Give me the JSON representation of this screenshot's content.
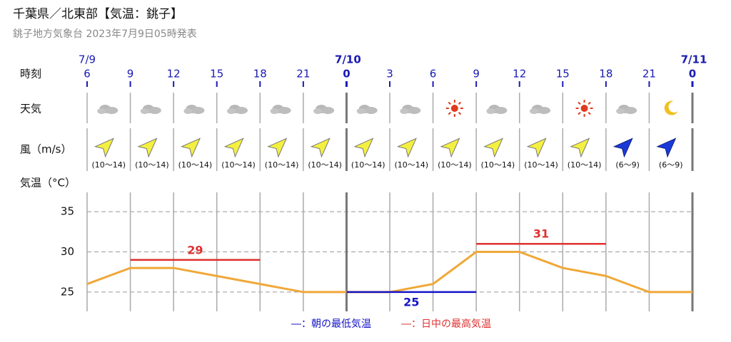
{
  "chart_data": {
    "type": "line",
    "title": "千葉県／北東部【気温：銚子】",
    "subtitle": "銚子地方気象台 2023年7月9日05時発表",
    "row_labels": {
      "time": "時刻",
      "weather": "天気",
      "wind": "風（m/s）"
    },
    "y_label": "気温（°C）",
    "dates": [
      "7/9",
      null,
      null,
      null,
      null,
      null,
      "7/10",
      null,
      null,
      null,
      null,
      null,
      null,
      null,
      "7/11"
    ],
    "categories": [
      "6",
      "9",
      "12",
      "15",
      "18",
      "21",
      "0",
      "3",
      "6",
      "9",
      "12",
      "15",
      "18",
      "21",
      "0"
    ],
    "wind_labels": [
      "(10〜14)",
      "(10〜14)",
      "(10〜14)",
      "(10〜14)",
      "(10〜14)",
      "(10〜14)",
      "(10〜14)",
      "(10〜14)",
      "(10〜14)",
      "(10〜14)",
      "(10〜14)",
      "(10〜14)",
      "(6〜9)",
      "(6〜9)"
    ],
    "ylim": [
      22.6,
      37.4
    ],
    "yticks": [
      25,
      30,
      35
    ],
    "grid": true,
    "series": [
      {
        "color": "#f0a838",
        "values": [
          26,
          28,
          28,
          27,
          26,
          25,
          25,
          25,
          26,
          30,
          30,
          28,
          27,
          25,
          25
        ]
      },
      {
        "name": "―：朝の最低気温",
        "color": "#1414c8",
        "values": [
          null,
          null,
          null,
          null,
          null,
          null,
          25,
          25,
          25,
          25,
          null,
          null,
          null,
          null,
          null
        ]
      },
      {
        "name": "―：日中の最高気温",
        "color": "#e03030",
        "values": [
          null,
          29,
          29,
          29,
          29,
          null,
          null,
          null,
          null,
          31,
          31,
          31,
          31,
          null,
          null
        ]
      }
    ]
  }
}
